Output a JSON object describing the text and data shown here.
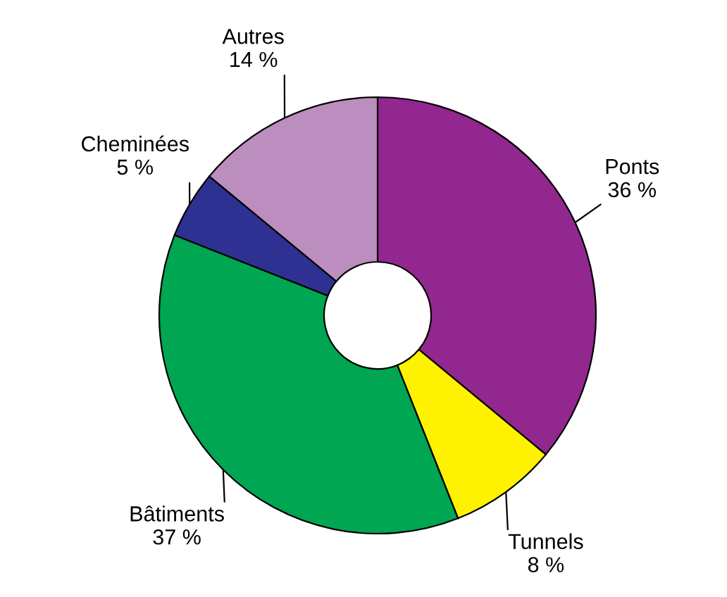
{
  "chart_data": {
    "type": "donut",
    "categories": [
      "Ponts",
      "Tunnels",
      "Bâtiments",
      "Cheminées",
      "Autres"
    ],
    "values": [
      36,
      8,
      37,
      5,
      14
    ],
    "value_labels": [
      "36 %",
      "8 %",
      "37 %",
      "5 %",
      "14 %"
    ],
    "colors": [
      "#92278f",
      "#fff200",
      "#00a651",
      "#2e3192",
      "#bc8dbf"
    ]
  }
}
